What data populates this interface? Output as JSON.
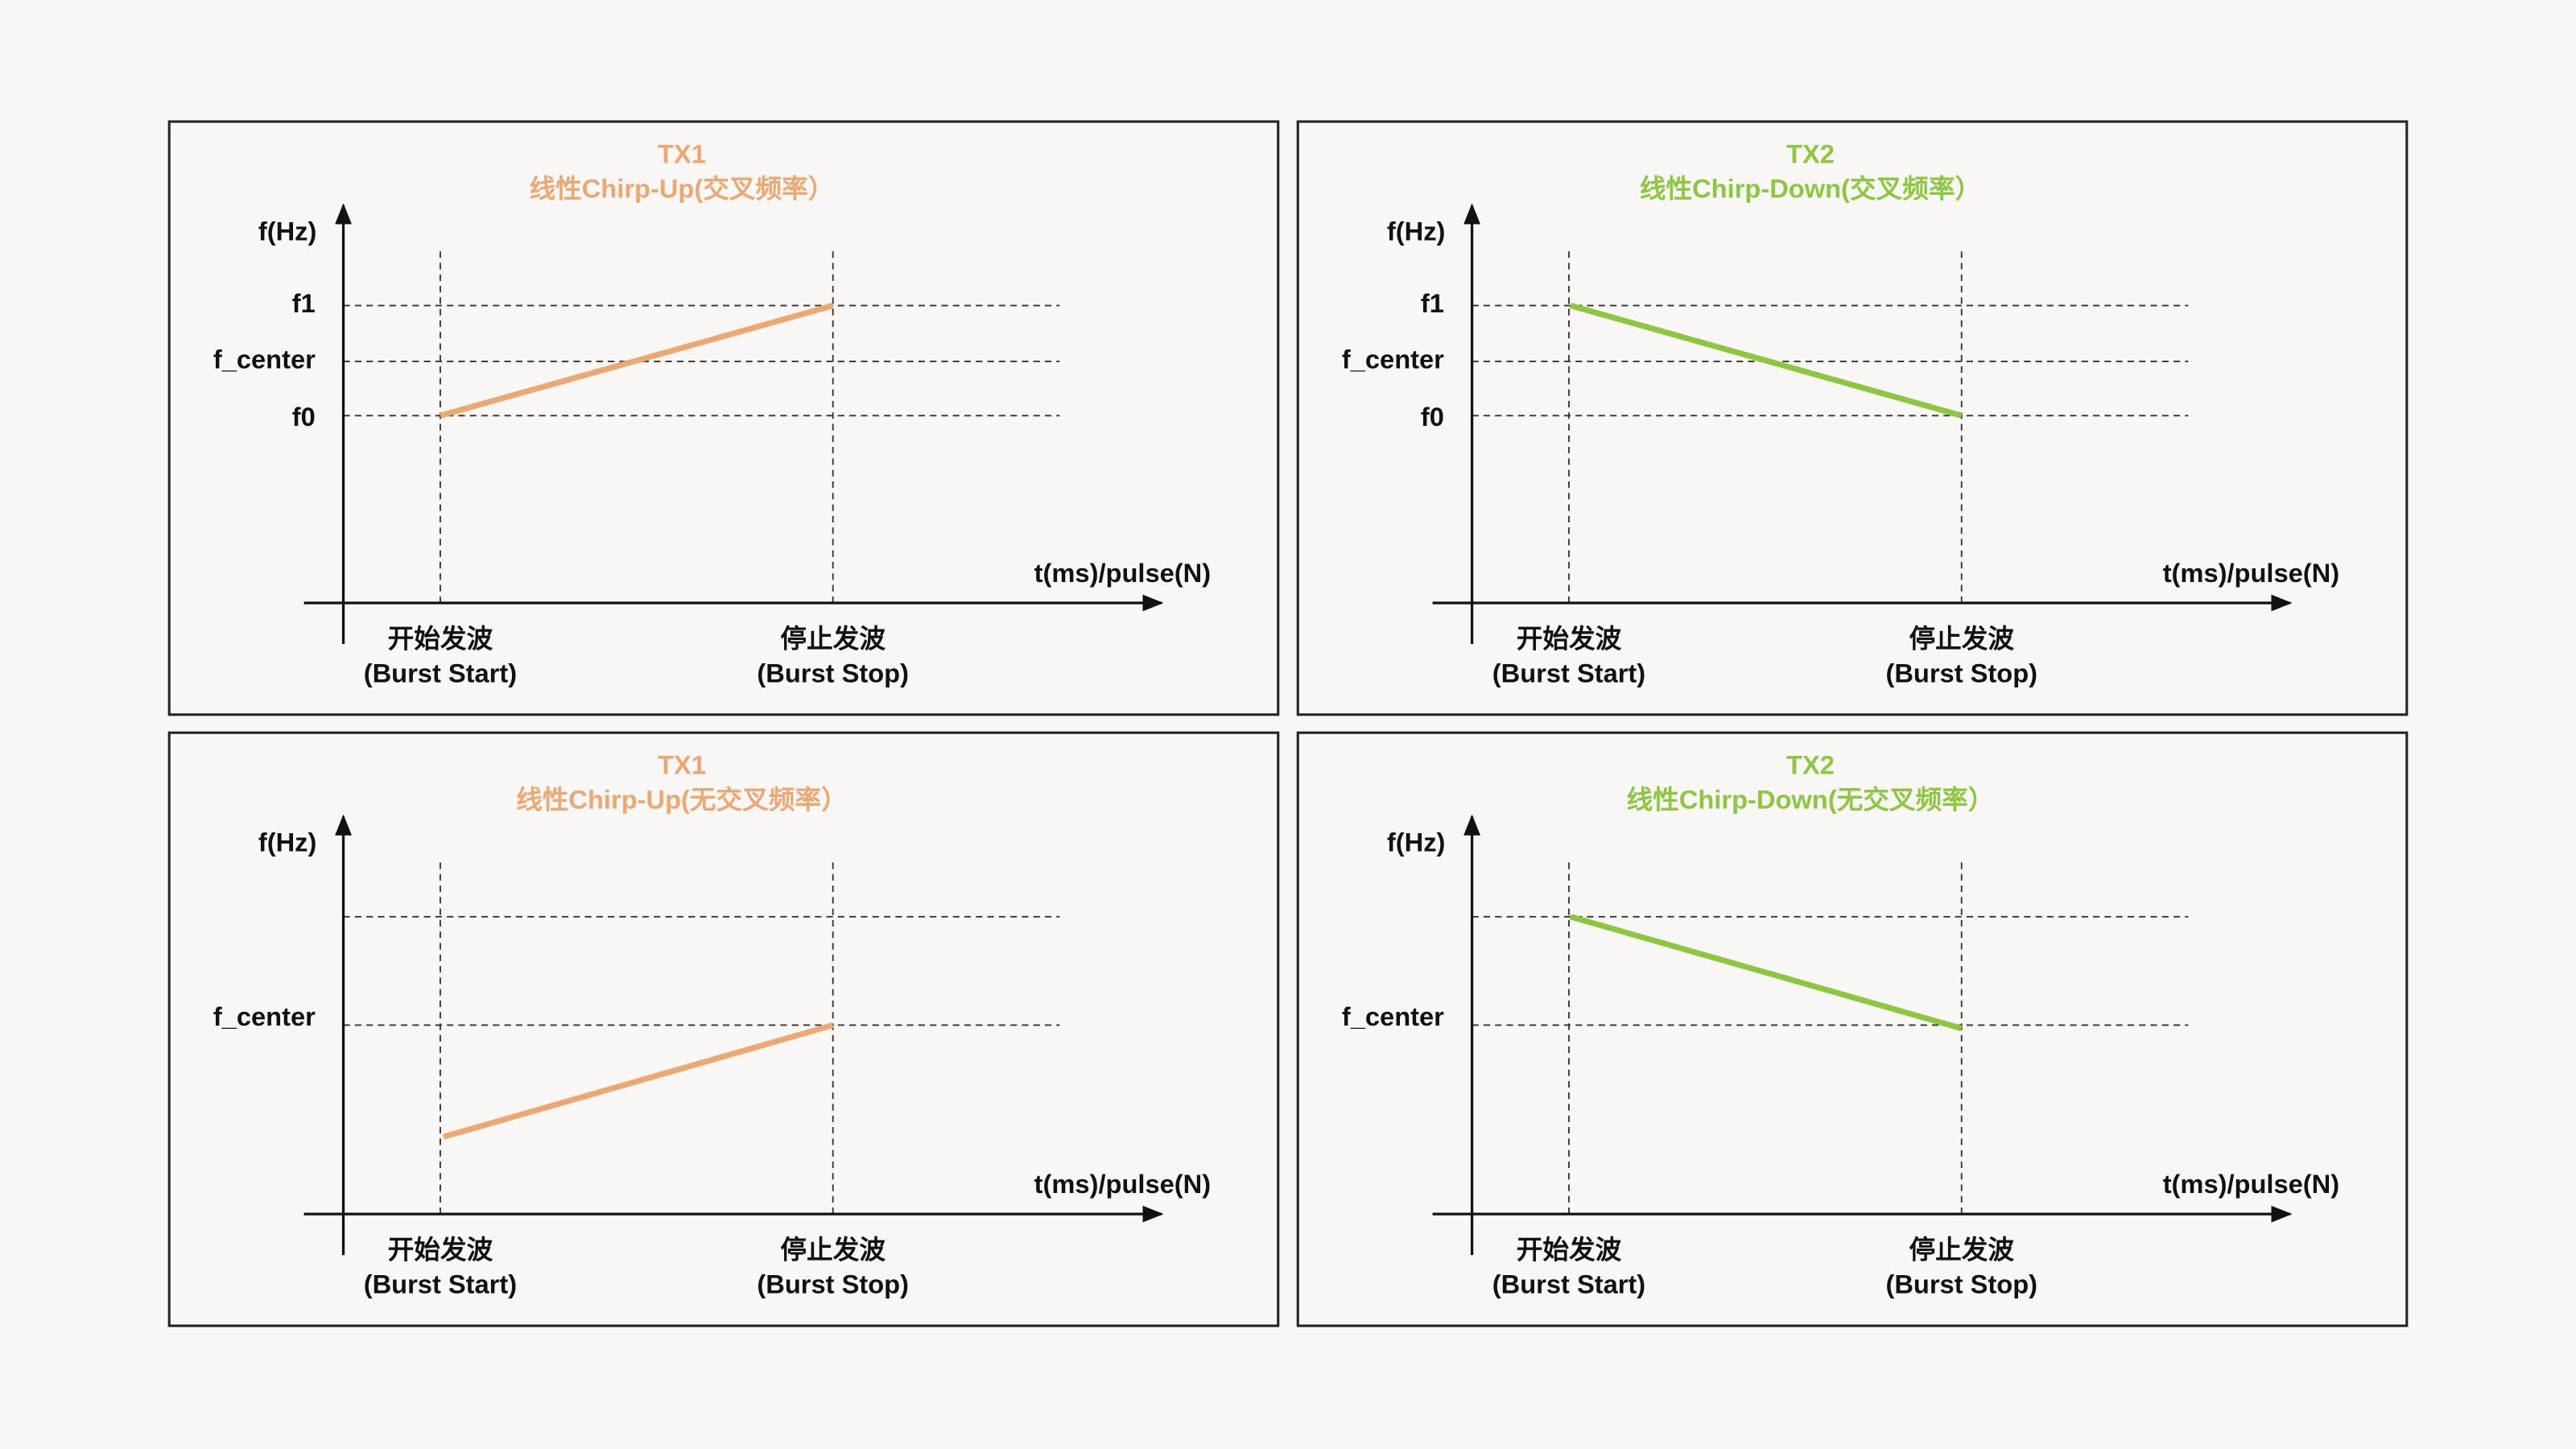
{
  "panels": [
    {
      "title": "TX1",
      "subtitle": "线性Chirp-Up(交叉频率）",
      "color": "#eba872",
      "y_axis_label": "f(Hz)",
      "x_axis_label": "t(ms)/pulse(N)",
      "y_labels": [
        "f1",
        "f_center",
        "f0"
      ],
      "markers": [
        {
          "label": "开始发波",
          "sublabel": "(Burst Start)"
        },
        {
          "label": "停止发波",
          "sublabel": "(Burst Stop)"
        }
      ]
    },
    {
      "title": "TX2",
      "subtitle": "线性Chirp-Down(交叉频率）",
      "color": "#8dc63f",
      "y_axis_label": "f(Hz)",
      "x_axis_label": "t(ms)/pulse(N)",
      "y_labels": [
        "f1",
        "f_center",
        "f0"
      ],
      "markers": [
        {
          "label": "开始发波",
          "sublabel": "(Burst Start)"
        },
        {
          "label": "停止发波",
          "sublabel": "(Burst Stop)"
        }
      ]
    },
    {
      "title": "TX1",
      "subtitle": "线性Chirp-Up(无交叉频率）",
      "color": "#eba872",
      "y_axis_label": "f(Hz)",
      "x_axis_label": "t(ms)/pulse(N)",
      "y_labels": [
        "f_center"
      ],
      "markers": [
        {
          "label": "开始发波",
          "sublabel": "(Burst Start)"
        },
        {
          "label": "停止发波",
          "sublabel": "(Burst Stop)"
        }
      ]
    },
    {
      "title": "TX2",
      "subtitle": "线性Chirp-Down(无交叉频率）",
      "color": "#8dc63f",
      "y_axis_label": "f(Hz)",
      "x_axis_label": "t(ms)/pulse(N)",
      "y_labels": [
        "f_center"
      ],
      "markers": [
        {
          "label": "开始发波",
          "sublabel": "(Burst Start)"
        },
        {
          "label": "停止发波",
          "sublabel": "(Burst Stop)"
        }
      ]
    }
  ]
}
